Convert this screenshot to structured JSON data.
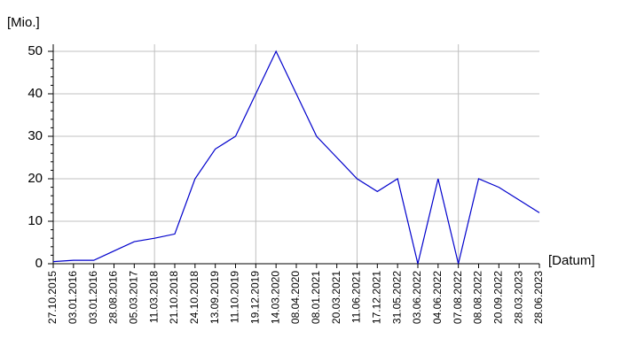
{
  "chart_data": {
    "type": "line",
    "y_label": "[Mio.]",
    "x_label": "[Datum]",
    "categories": [
      "27.10.2015",
      "03.01.2016",
      "03.01.2016",
      "28.08.2016",
      "05.03.2017",
      "11.03.2018",
      "21.10.2018",
      "24.10.2018",
      "13.09.2019",
      "11.10.2019",
      "19.12.2019",
      "14.03.2020",
      "08.04.2020",
      "08.01.2021",
      "20.03.2021",
      "11.06.2021",
      "17.12.2021",
      "31.05.2022",
      "03.06.2022",
      "04.06.2022",
      "07.08.2022",
      "08.08.2022",
      "20.09.2022",
      "28.03.2023",
      "28.06.2023"
    ],
    "series": [
      {
        "color": "#0000cc",
        "values": [
          0.5,
          0.8,
          0.8,
          3,
          5.2,
          6,
          7,
          20,
          27,
          30,
          40,
          50,
          40,
          30,
          25,
          20,
          17,
          20,
          0,
          20,
          0,
          20,
          18,
          15,
          12
        ]
      }
    ],
    "ylim": [
      0,
      50
    ],
    "yticks": [
      0,
      10,
      20,
      30,
      40,
      50
    ],
    "grid": true
  }
}
